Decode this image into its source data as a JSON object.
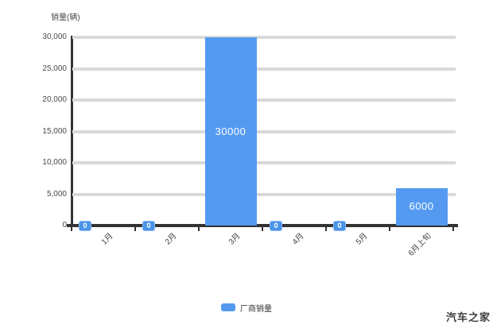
{
  "page": {
    "background": "#ffffff",
    "watermark": "汽车之家"
  },
  "chart_data": {
    "type": "bar",
    "title": "销量(辆)",
    "ylabel": "销量(辆)",
    "xlabel": "",
    "categories": [
      "1月",
      "2月",
      "3月",
      "4月",
      "5月",
      "6月上旬"
    ],
    "values": [
      0,
      0,
      30000,
      0,
      0,
      6000
    ],
    "bar_labels": [
      "0",
      "0",
      "30000",
      "0",
      "0",
      "6000"
    ],
    "ylim": [
      0,
      30000
    ],
    "ytick_values": [
      30000,
      25000,
      20000,
      15000,
      10000,
      5000,
      0
    ],
    "ytick_labels": [
      "30,000",
      "25,000",
      "20,000",
      "15,000",
      "10,000",
      "5,000",
      "0"
    ],
    "grid": true,
    "legend": {
      "label": "厂商销量",
      "color": "#549af0",
      "position": "bottom-center"
    },
    "colors": {
      "bar": "#549af0",
      "gridline": "#d9d9d9",
      "axis": "#333333",
      "tick_text": "#4a4a4a",
      "value_label": "#ffffff",
      "zero_badge": "#4b93ea"
    }
  }
}
